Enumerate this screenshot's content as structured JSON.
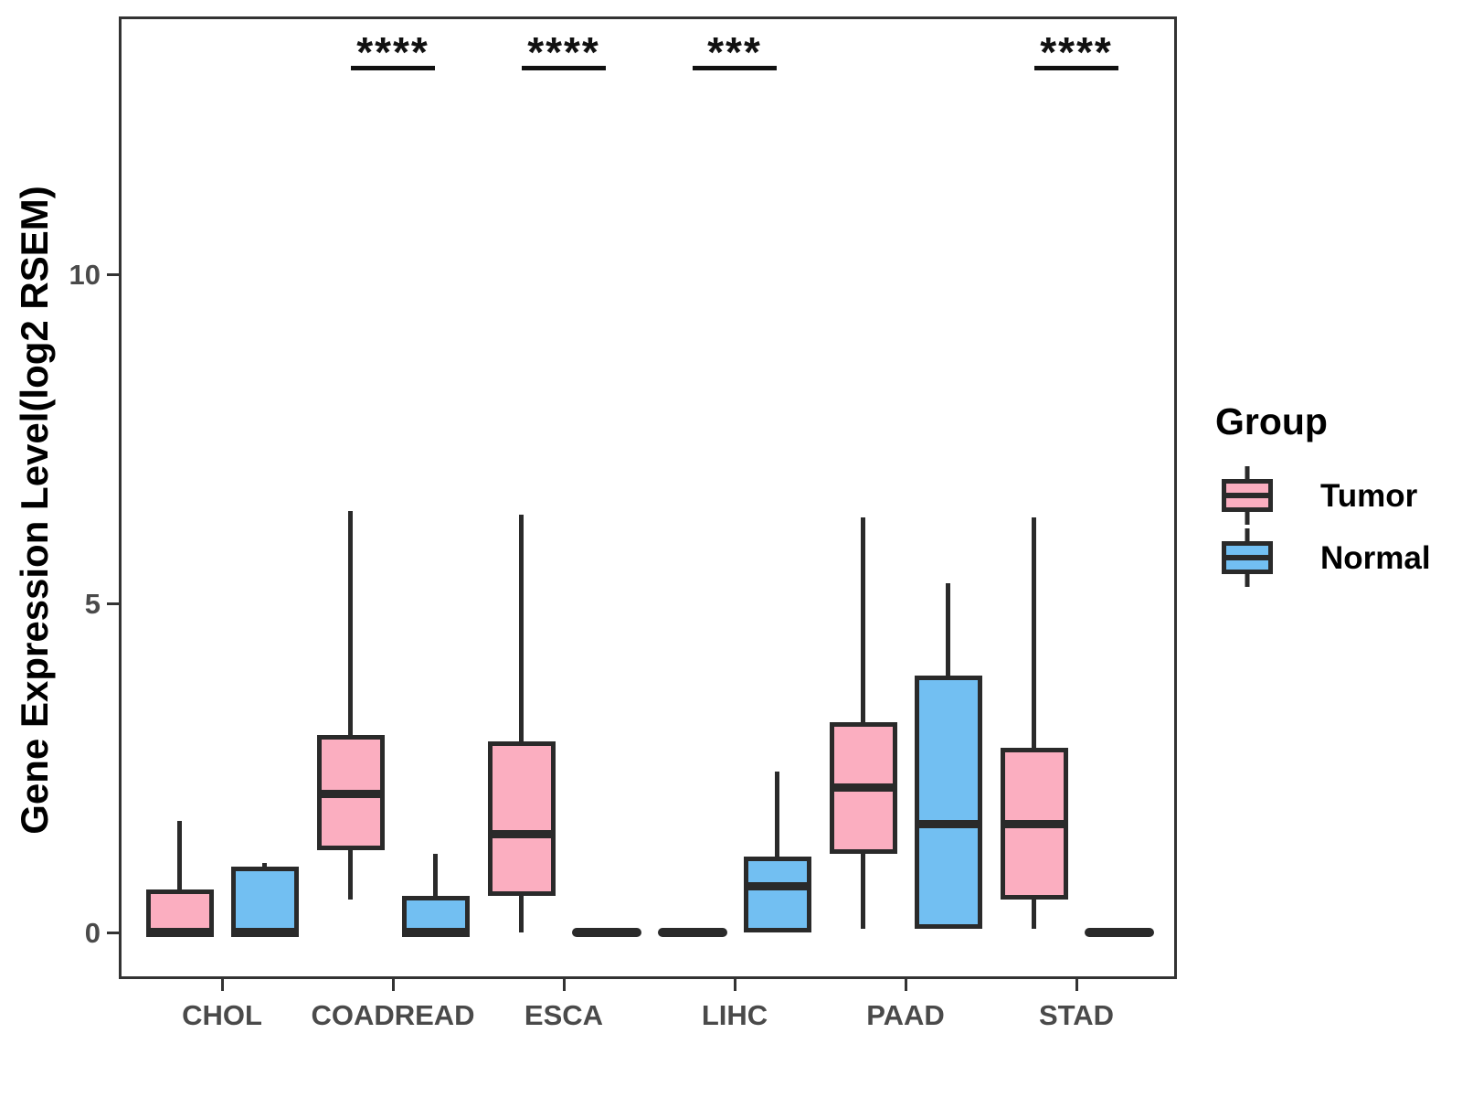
{
  "chart_data": {
    "type": "grouped_boxplot",
    "title": "",
    "xlabel": "",
    "ylabel": "Gene Expression Level(log2 RSEM)",
    "y_ticks": [
      0,
      5,
      10
    ],
    "ylim": [
      -0.7,
      13.9
    ],
    "grid": false,
    "categories": [
      "CHOL",
      "COADREAD",
      "ESCA",
      "LIHC",
      "PAAD",
      "STAD"
    ],
    "significance": [
      null,
      "****",
      "****",
      "***",
      null,
      "****"
    ],
    "series": [
      {
        "name": "Tumor",
        "color": "#FBAEC0",
        "boxes": [
          {
            "lo": 0,
            "q1": 0,
            "med": 0,
            "q3": 0.65,
            "hi": 1.7
          },
          {
            "lo": 0.5,
            "q1": 1.25,
            "med": 2.1,
            "q3": 3.0,
            "hi": 6.4
          },
          {
            "lo": 0,
            "q1": 0.55,
            "med": 1.5,
            "q3": 2.9,
            "hi": 6.35
          },
          {
            "lo": 0,
            "q1": 0,
            "med": 0,
            "q3": 0,
            "hi": 0
          },
          {
            "lo": 0.05,
            "q1": 1.2,
            "med": 2.2,
            "q3": 3.2,
            "hi": 6.3
          },
          {
            "lo": 0.05,
            "q1": 0.5,
            "med": 1.65,
            "q3": 2.8,
            "hi": 6.3
          }
        ]
      },
      {
        "name": "Normal",
        "color": "#72BFF2",
        "boxes": [
          {
            "lo": 0,
            "q1": 0,
            "med": 0,
            "q3": 1.0,
            "hi": 1.05
          },
          {
            "lo": 0,
            "q1": 0,
            "med": 0,
            "q3": 0.55,
            "hi": 1.2
          },
          {
            "lo": 0,
            "q1": 0,
            "med": 0,
            "q3": 0,
            "hi": 0
          },
          {
            "lo": 0,
            "q1": 0,
            "med": 0.7,
            "q3": 1.15,
            "hi": 2.45
          },
          {
            "lo": 0.05,
            "q1": 0.05,
            "med": 1.65,
            "q3": 3.9,
            "hi": 5.3
          },
          {
            "lo": 0,
            "q1": 0,
            "med": 0,
            "q3": 0,
            "hi": 0
          }
        ]
      }
    ],
    "legend": {
      "title": "Group",
      "position": "right"
    }
  },
  "colors": {
    "box_outline": "#2a2a2a",
    "panel_border": "#333333",
    "axis_text": "#4a4a4a",
    "title_text": "#000000",
    "significance": "#111111",
    "background": "#ffffff"
  }
}
